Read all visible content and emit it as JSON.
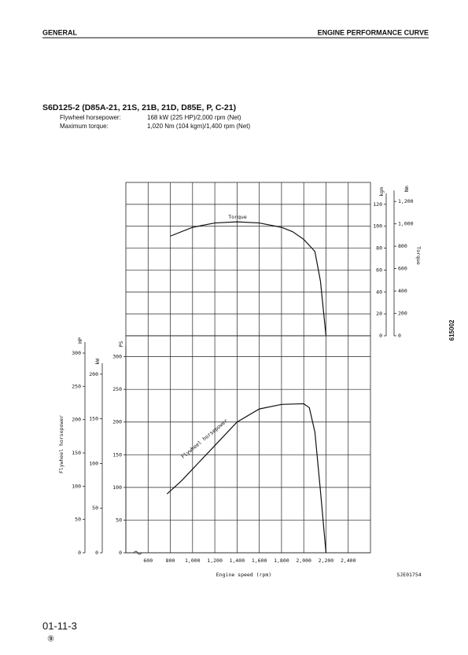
{
  "header": {
    "left": "GENERAL",
    "right": "ENGINE PERFORMANCE CURVE"
  },
  "title": "S6D125-2 (D85A-21, 21S, 21B, 21D, D85E, P, C-21)",
  "specs": [
    [
      "Flywheel horsepower:",
      "168 kW (225 HP)/2,000 rpm (Net)"
    ],
    [
      "Maximum torque:",
      "1,020 Nm (104 kgm)/1,400 rpm (Net)"
    ]
  ],
  "side_code": "615002",
  "figure_code": "SJE01754",
  "footer": {
    "page": "01-11-3",
    "revision": "⑨"
  },
  "chart_data": [
    {
      "type": "line",
      "x": [
        800,
        1000,
        1200,
        1400,
        1600,
        1800,
        1900,
        2000,
        2100,
        2150,
        2200
      ],
      "series": [
        {
          "name": "Torque",
          "color": "#111",
          "values": [
            91,
            99,
            103,
            104,
            103,
            99,
            95,
            88,
            77,
            50,
            0
          ]
        }
      ],
      "xlim": [
        400,
        2600
      ],
      "ylim": [
        0,
        140
      ],
      "yticks": [
        0,
        20,
        40,
        60,
        80,
        100,
        120
      ],
      "y_unit": "kgm",
      "y2lim": [
        0,
        1370
      ],
      "y2ticks": [
        0,
        200,
        400,
        600,
        800,
        {
          "value": 1000,
          "label": "1,000"
        },
        {
          "value": 1200,
          "label": "1,200"
        }
      ],
      "y2_unit": "Nm",
      "y2_label": "Torque",
      "grid": true
    },
    {
      "type": "line",
      "x": [
        770,
        900,
        1000,
        1200,
        1400,
        1600,
        1800,
        2000,
        2050,
        2100,
        2150,
        2200
      ],
      "series": [
        {
          "name": "Flywheel horsepower",
          "color": "#111",
          "values": [
            90,
            110,
            128,
            164,
            200,
            220,
            227,
            228,
            222,
            185,
            95,
            0
          ]
        }
      ],
      "xlim": [
        400,
        2600
      ],
      "xticks": [
        600,
        800,
        {
          "value": 1000,
          "label": "1,000"
        },
        {
          "value": 1200,
          "label": "1,200"
        },
        {
          "value": 1400,
          "label": "1,400"
        },
        {
          "value": 1600,
          "label": "1,600"
        },
        {
          "value": 1800,
          "label": "1,800"
        },
        {
          "value": 2000,
          "label": "2,000"
        },
        {
          "value": 2200,
          "label": "2,200"
        },
        {
          "value": 2400,
          "label": "2,400"
        }
      ],
      "x_label": "Engine speed (rpm)",
      "ylim": [
        0,
        332
      ],
      "yticks": [
        0,
        50,
        100,
        150,
        200,
        250,
        300
      ],
      "y_unit": "PS",
      "y2lim": [
        0,
        326
      ],
      "y2ticks": [
        0,
        50,
        100,
        150,
        200,
        250,
        300
      ],
      "y2_unit": "HP",
      "y3lim": [
        0,
        243
      ],
      "y3ticks": [
        0,
        50,
        100,
        150,
        200
      ],
      "y3_unit": "kW",
      "y_label": "Flywheel horsepower",
      "grid": true
    }
  ]
}
